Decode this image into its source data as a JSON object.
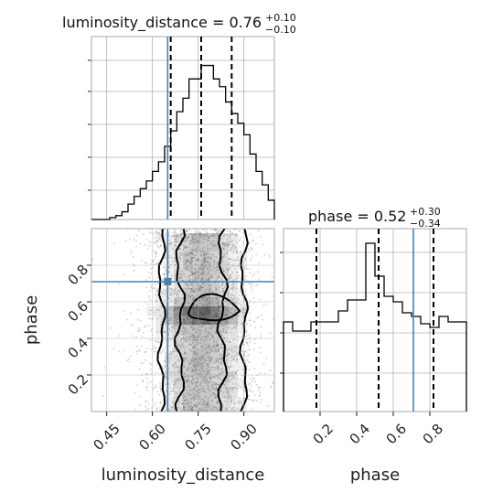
{
  "chart_data": [
    {
      "type": "histogram",
      "panel": "luminosity_distance marginal",
      "title": {
        "main": "luminosity_distance = 0.76",
        "plus": "+0.10",
        "minus": "−0.10"
      },
      "xlim": [
        0.4,
        1.0
      ],
      "grid": true,
      "bins_x": [
        0.4,
        0.42,
        0.44,
        0.46,
        0.48,
        0.5,
        0.52,
        0.54,
        0.56,
        0.58,
        0.6,
        0.62,
        0.64,
        0.66,
        0.68,
        0.7,
        0.72,
        0.74,
        0.76,
        0.78,
        0.8,
        0.82,
        0.84,
        0.86,
        0.88,
        0.9,
        0.92,
        0.94,
        0.96,
        0.98
      ],
      "counts": [
        0,
        0,
        0,
        1,
        2,
        4,
        8,
        12,
        16,
        20,
        25,
        30,
        38,
        46,
        56,
        63,
        73,
        73,
        80,
        80,
        73,
        69,
        61,
        55,
        50,
        44,
        34,
        25,
        18,
        10
      ],
      "quantiles": [
        0.66,
        0.76,
        0.86
      ],
      "truth": 0.65
    },
    {
      "type": "histogram",
      "panel": "phase marginal",
      "title": {
        "main": "phase = 0.52",
        "plus": "+0.30",
        "minus": "−0.34"
      },
      "xlim": [
        0.0,
        1.0
      ],
      "xticks": [
        "0.2",
        "0.4",
        "0.6",
        "0.8"
      ],
      "xlabel": "phase",
      "grid": true,
      "bins_x": [
        0.0,
        0.05,
        0.1,
        0.15,
        0.2,
        0.25,
        0.3,
        0.35,
        0.4,
        0.45,
        0.5,
        0.55,
        0.6,
        0.65,
        0.7,
        0.75,
        0.8,
        0.85,
        0.9,
        0.95
      ],
      "counts": [
        49,
        44,
        44,
        49,
        49,
        49,
        55,
        61,
        61,
        92,
        74,
        63,
        60,
        54,
        52,
        48,
        46,
        52,
        49,
        49
      ],
      "quantiles": [
        0.18,
        0.52,
        0.82
      ],
      "truth": 0.71
    },
    {
      "type": "scatter_density",
      "panel": "luminosity_distance vs phase",
      "xlabel": "luminosity_distance",
      "ylabel": "phase",
      "xlim": [
        0.4,
        1.0
      ],
      "ylim": [
        0.0,
        1.0
      ],
      "xticks": [
        "0.45",
        "0.60",
        "0.75",
        "0.90"
      ],
      "yticks": [
        "0.2",
        "0.4",
        "0.6",
        "0.8"
      ],
      "grid": true,
      "truth": {
        "x": 0.65,
        "y": 0.71
      }
    }
  ]
}
